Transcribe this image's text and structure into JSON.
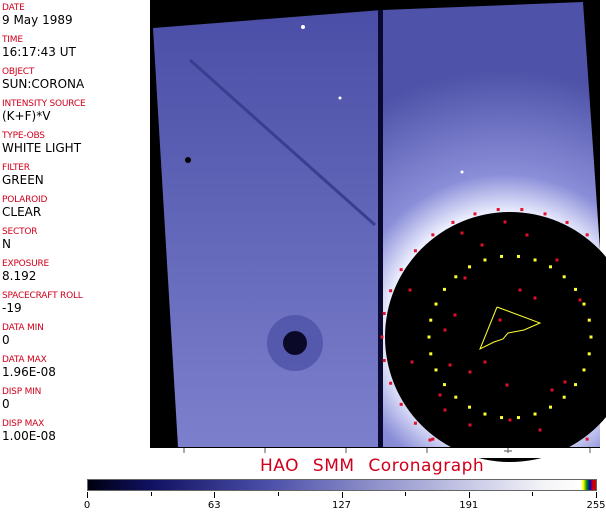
{
  "fields": [
    {
      "label": "DATE",
      "value": "9 May 1989"
    },
    {
      "label": "TIME",
      "value": "16:17:43 UT"
    },
    {
      "label": "OBJECT",
      "value": "SUN:CORONA"
    },
    {
      "label": "INTENSITY SOURCE",
      "value": "(K+F)*V"
    },
    {
      "label": "TYPE-OBS",
      "value": "WHITE LIGHT"
    },
    {
      "label": "FILTER",
      "value": "GREEN"
    },
    {
      "label": "POLAROID",
      "value": "CLEAR"
    },
    {
      "label": "SECTOR",
      "value": "N"
    },
    {
      "label": "EXPOSURE",
      "value": "8.192"
    },
    {
      "label": "SPACECRAFT ROLL",
      "value": "-19"
    },
    {
      "label": "DATA MIN",
      "value": "0"
    },
    {
      "label": "DATA MAX",
      "value": "1.96E-08"
    },
    {
      "label": "DISP MIN",
      "value": "0"
    },
    {
      "label": "DISP MAX",
      "value": "1.00E-08"
    }
  ],
  "title": "HAO  SMM  Coronagraph",
  "colorbar": {
    "ticks": [
      "0",
      "63",
      "127",
      "191",
      "255"
    ]
  },
  "colors": {
    "label": "#d0001c",
    "image": "#5558b0",
    "marker_red": "#e0102a",
    "marker_yellow": "#ffff30"
  }
}
